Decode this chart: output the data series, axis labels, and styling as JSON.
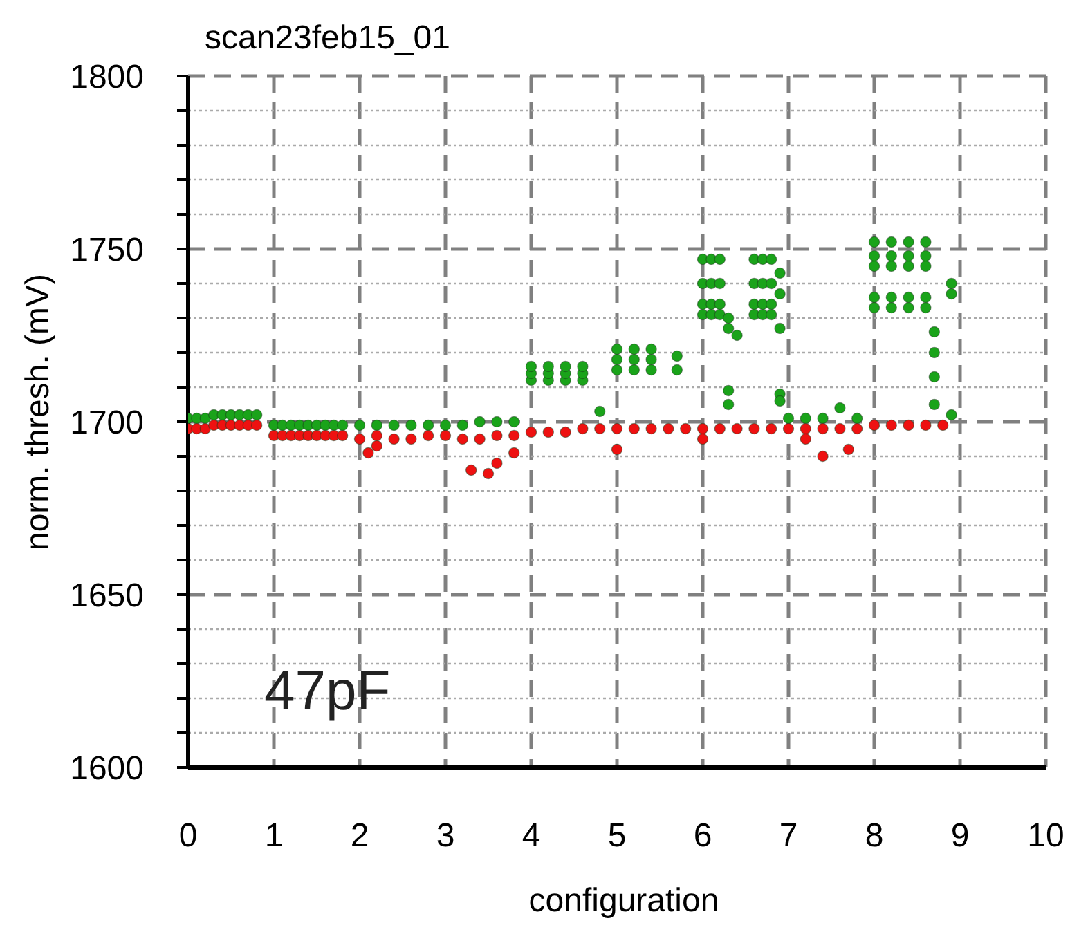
{
  "chart_data": {
    "type": "scatter",
    "title": "scan23feb15_01",
    "xlabel": "configuration",
    "ylabel": "norm. thresh. (mV)",
    "annotations": [
      "47pF"
    ],
    "xlim": [
      0,
      10
    ],
    "xticks": [
      0,
      1,
      2,
      3,
      4,
      5,
      6,
      7,
      8,
      9,
      10
    ],
    "ylim": [
      1600,
      1800
    ],
    "yticks": [
      1600,
      {
        "value": 1610,
        "label": null
      },
      {
        "value": 1620,
        "label": null
      },
      {
        "value": 1630,
        "label": null
      },
      {
        "value": 1640,
        "label": null
      },
      1650,
      {
        "value": 1660,
        "label": null
      },
      {
        "value": 1670,
        "label": null
      },
      {
        "value": 1680,
        "label": null
      },
      {
        "value": 1690,
        "label": null
      },
      1700,
      {
        "value": 1710,
        "label": null
      },
      {
        "value": 1720,
        "label": null
      },
      {
        "value": 1730,
        "label": null
      },
      {
        "value": 1740,
        "label": null
      },
      1750,
      {
        "value": 1760,
        "label": null
      },
      {
        "value": 1770,
        "label": null
      },
      {
        "value": 1780,
        "label": null
      },
      {
        "value": 1790,
        "label": null
      },
      1800
    ],
    "grid": true,
    "marker": "circle",
    "series": [
      {
        "color": "#1aa31a",
        "x": [
          0,
          0.1,
          0.2,
          0.3,
          0.4,
          0.5,
          0.6,
          0.7,
          0.8,
          1.0,
          1.1,
          1.2,
          1.3,
          1.4,
          1.5,
          1.6,
          1.7,
          1.8,
          2.0,
          2.2,
          2.4,
          2.6,
          2.8,
          3.0,
          3.2,
          3.4,
          3.6,
          3.8,
          4.0,
          4.0,
          4.0,
          4.2,
          4.2,
          4.2,
          4.4,
          4.4,
          4.4,
          4.6,
          4.6,
          4.6,
          4.8,
          5.0,
          5.0,
          5.0,
          5.2,
          5.2,
          5.2,
          5.4,
          5.4,
          5.4,
          5.7,
          5.7,
          6.0,
          6.0,
          6.0,
          6.0,
          6.1,
          6.1,
          6.1,
          6.1,
          6.2,
          6.2,
          6.2,
          6.2,
          6.3,
          6.3,
          6.3,
          6.3,
          6.4,
          6.6,
          6.6,
          6.6,
          6.6,
          6.7,
          6.7,
          6.7,
          6.7,
          6.8,
          6.8,
          6.8,
          6.8,
          6.9,
          6.9,
          6.9,
          6.9,
          6.9,
          7.0,
          7.2,
          7.4,
          7.6,
          7.8,
          8.0,
          8.0,
          8.0,
          8.0,
          8.0,
          8.2,
          8.2,
          8.2,
          8.2,
          8.2,
          8.4,
          8.4,
          8.4,
          8.4,
          8.4,
          8.6,
          8.6,
          8.6,
          8.6,
          8.6,
          8.7,
          8.7,
          8.7,
          8.7,
          8.9,
          8.9,
          8.9
        ],
        "values": [
          1701,
          1701,
          1701,
          1702,
          1702,
          1702,
          1702,
          1702,
          1702,
          1699,
          1699,
          1699,
          1699,
          1699,
          1699,
          1699,
          1699,
          1699,
          1699,
          1699,
          1699,
          1699,
          1699,
          1699,
          1699,
          1700,
          1700,
          1700,
          1712,
          1714,
          1716,
          1712,
          1714,
          1716,
          1712,
          1714,
          1716,
          1712,
          1714,
          1716,
          1703,
          1715,
          1718,
          1721,
          1715,
          1718,
          1721,
          1715,
          1718,
          1721,
          1715,
          1719,
          1731,
          1734,
          1740,
          1747,
          1731,
          1734,
          1740,
          1747,
          1731,
          1734,
          1740,
          1747,
          1727,
          1730,
          1709,
          1705,
          1725,
          1731,
          1734,
          1740,
          1747,
          1731,
          1734,
          1740,
          1747,
          1731,
          1734,
          1740,
          1747,
          1743,
          1737,
          1727,
          1708,
          1706,
          1701,
          1701,
          1701,
          1704,
          1701,
          1733,
          1736,
          1745,
          1748,
          1752,
          1733,
          1736,
          1745,
          1748,
          1752,
          1733,
          1736,
          1745,
          1748,
          1752,
          1733,
          1736,
          1745,
          1748,
          1752,
          1726,
          1720,
          1713,
          1705,
          1740,
          1737,
          1702
        ]
      },
      {
        "color": "#ee1111",
        "x": [
          0,
          0.1,
          0.2,
          0.3,
          0.4,
          0.5,
          0.6,
          0.7,
          0.8,
          1.0,
          1.1,
          1.2,
          1.3,
          1.4,
          1.5,
          1.6,
          1.7,
          1.8,
          2.0,
          2.1,
          2.2,
          2.2,
          2.4,
          2.6,
          2.8,
          3.0,
          3.2,
          3.3,
          3.4,
          3.5,
          3.6,
          3.6,
          3.8,
          3.8,
          4.0,
          4.2,
          4.4,
          4.6,
          4.8,
          5.0,
          5.0,
          5.2,
          5.4,
          5.6,
          5.8,
          6.0,
          6.0,
          6.2,
          6.4,
          6.6,
          6.8,
          7.0,
          7.2,
          7.2,
          7.4,
          7.4,
          7.6,
          7.7,
          7.8,
          8.0,
          8.2,
          8.4,
          8.6,
          8.8
        ],
        "values": [
          1698,
          1698,
          1698,
          1699,
          1699,
          1699,
          1699,
          1699,
          1699,
          1696,
          1696,
          1696,
          1696,
          1696,
          1696,
          1696,
          1696,
          1696,
          1695,
          1691,
          1696,
          1693,
          1695,
          1695,
          1696,
          1696,
          1695,
          1686,
          1695,
          1685,
          1696,
          1688,
          1696,
          1691,
          1697,
          1697,
          1697,
          1698,
          1698,
          1698,
          1692,
          1698,
          1698,
          1698,
          1698,
          1698,
          1695,
          1698,
          1698,
          1698,
          1698,
          1698,
          1698,
          1695,
          1698,
          1690,
          1698,
          1692,
          1698,
          1699,
          1699,
          1699,
          1699,
          1699
        ]
      }
    ]
  }
}
